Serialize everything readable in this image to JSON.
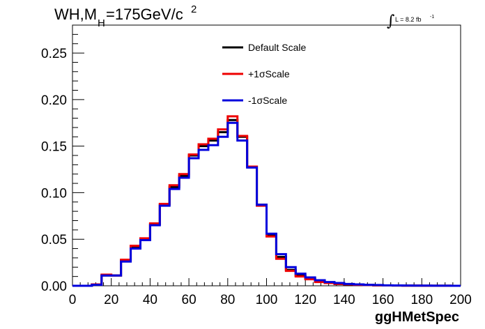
{
  "chart_data": {
    "type": "line",
    "step": true,
    "title_main": "WH,M",
    "title_sub": "H",
    "title_rest": "=175GeV/c",
    "title_sup": "2",
    "lumi_integral": "∫",
    "lumi_text": "L = 8.2 fb",
    "lumi_sup": "-1",
    "xlabel": "ggHMetSpec",
    "ylabel": "",
    "xlim": [
      0,
      200
    ],
    "ylim": [
      0,
      0.28
    ],
    "xticks": [
      "0",
      "20",
      "40",
      "60",
      "80",
      "100",
      "120",
      "140",
      "160",
      "180",
      "200"
    ],
    "yticks": [
      "0.00",
      "0.05",
      "0.10",
      "0.15",
      "0.20",
      "0.25"
    ],
    "bin_width": 5,
    "bin_edges_start": 0,
    "series": [
      {
        "name": "Default Scale",
        "color": "#000000",
        "values": [
          0.0,
          0.0,
          0.0015,
          0.011,
          0.011,
          0.027,
          0.042,
          0.05,
          0.066,
          0.087,
          0.106,
          0.118,
          0.14,
          0.15,
          0.156,
          0.165,
          0.178,
          0.16,
          0.128,
          0.087,
          0.055,
          0.031,
          0.017,
          0.011,
          0.008,
          0.005,
          0.003,
          0.002,
          0.0015,
          0.001,
          0.0008,
          0.0005,
          0.0004,
          0.0003,
          0.0002,
          0.0002,
          0.0001,
          0.0001,
          0.0001,
          0.0
        ]
      },
      {
        "name": "+1σScale",
        "color": "#ee0000",
        "values": [
          0.0,
          0.0,
          0.0015,
          0.012,
          0.011,
          0.028,
          0.043,
          0.051,
          0.067,
          0.088,
          0.108,
          0.12,
          0.141,
          0.152,
          0.158,
          0.168,
          0.182,
          0.161,
          0.128,
          0.086,
          0.053,
          0.029,
          0.016,
          0.01,
          0.007,
          0.004,
          0.003,
          0.002,
          0.0015,
          0.001,
          0.0008,
          0.0005,
          0.0004,
          0.0003,
          0.0002,
          0.0002,
          0.0001,
          0.0001,
          0.0001,
          0.0
        ]
      },
      {
        "name": "-1σScale",
        "color": "#0000dd",
        "values": [
          0.0,
          0.0,
          0.001,
          0.011,
          0.011,
          0.026,
          0.04,
          0.049,
          0.065,
          0.086,
          0.104,
          0.116,
          0.137,
          0.146,
          0.151,
          0.16,
          0.175,
          0.156,
          0.127,
          0.087,
          0.056,
          0.034,
          0.02,
          0.013,
          0.009,
          0.006,
          0.004,
          0.003,
          0.002,
          0.0015,
          0.001,
          0.0008,
          0.0005,
          0.0004,
          0.0003,
          0.0002,
          0.0002,
          0.0001,
          0.0001,
          0.0
        ]
      }
    ],
    "legend_position": "top-center",
    "grid": false
  }
}
